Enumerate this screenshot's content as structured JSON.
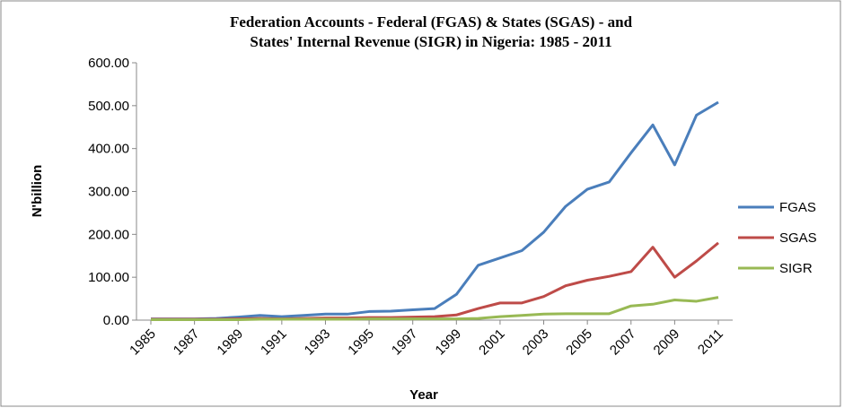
{
  "chart_data": {
    "type": "line",
    "title": [
      "Federation Accounts - Federal (FGAS) & States (SGAS) - and",
      "States' Internal Revenue (SIGR) in Nigeria: 1985 - 2011"
    ],
    "x_label": "Year",
    "y_label": "N'billion",
    "x": [
      1985,
      1986,
      1987,
      1988,
      1989,
      1990,
      1991,
      1992,
      1993,
      1994,
      1995,
      1996,
      1997,
      1998,
      1999,
      2000,
      2001,
      2002,
      2003,
      2004,
      2005,
      2006,
      2007,
      2008,
      2009,
      2010,
      2011
    ],
    "xlim": [
      1985,
      2011
    ],
    "xticks": [
      1985,
      1987,
      1989,
      1991,
      1993,
      1995,
      1997,
      1999,
      2001,
      2003,
      2005,
      2007,
      2009,
      2011
    ],
    "ylim": [
      0,
      600
    ],
    "yticks": [
      {
        "value": 0,
        "label": "0.00"
      },
      {
        "value": 100,
        "label": "100.00"
      },
      {
        "value": 200,
        "label": "200.00"
      },
      {
        "value": 300,
        "label": "300.00"
      },
      {
        "value": 400,
        "label": "400.00"
      },
      {
        "value": 500,
        "label": "500.00"
      },
      {
        "value": 600,
        "label": "600.00"
      }
    ],
    "legend": "right",
    "series": [
      {
        "name": "FGAS",
        "color": "#4a7ebb",
        "values": [
          3,
          3,
          3,
          4,
          7,
          11,
          8,
          11,
          14,
          14,
          20,
          21,
          24,
          27,
          60,
          128,
          145,
          162,
          205,
          265,
          305,
          322,
          390,
          455,
          362,
          478,
          508
        ]
      },
      {
        "name": "SGAS",
        "color": "#be4b48",
        "values": [
          2,
          2,
          2,
          2,
          3,
          4,
          3,
          4,
          5,
          5,
          6,
          6,
          7,
          8,
          12,
          27,
          40,
          40,
          55,
          80,
          93,
          102,
          113,
          170,
          100,
          138,
          180
        ]
      },
      {
        "name": "SIGR",
        "color": "#98b954",
        "values": [
          1,
          1,
          1,
          1,
          1,
          2,
          2,
          2,
          2,
          2,
          3,
          3,
          3,
          3,
          3,
          4,
          8,
          11,
          14,
          15,
          15,
          15,
          33,
          37,
          47,
          44,
          53
        ]
      }
    ]
  }
}
